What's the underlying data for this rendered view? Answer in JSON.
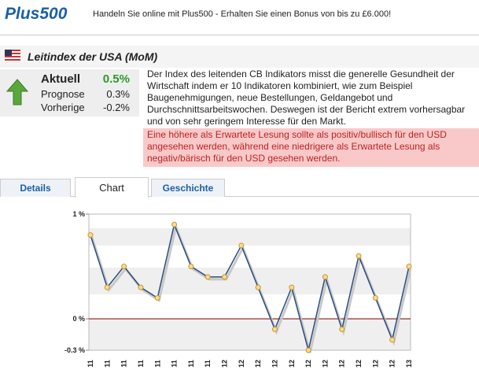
{
  "header": {
    "logo": "Plus500",
    "tagline": "Handeln Sie online mit Plus500 - Erhalten Sie einen Bonus von bis zu £6.000!"
  },
  "title": "Leitindex der USA (MoM)",
  "stats": {
    "current_label": "Aktuell",
    "current_value": "0.5%",
    "forecast_label": "Prognose",
    "forecast_value": "0.3%",
    "previous_label": "Vorherige",
    "previous_value": "-0.2%"
  },
  "description": "Der Index des leitenden CB Indikators misst die generelle Gesundheit der Wirtschaft indem er 10 Indikatoren kombiniert, wie zum Beispiel Baugenehmigungen, neue Bestellungen, Geldangebot und Durchschnittsarbeitswochen. Deswegen ist der Bericht extrem vorhersagbar und von sehr geringem Interesse für den Markt.",
  "note": "Eine höhere als Erwartete Lesung sollte als positiv/bullisch für den USD angesehen werden, während eine niedrigere als Erwartete Lesung als negativ/bärisch für den USD gesehen werden.",
  "tabs": [
    "Details",
    "Chart",
    "Geschichte"
  ],
  "chart_data": {
    "type": "line",
    "categories": [
      "11",
      "11",
      "11",
      "11",
      "11",
      "11",
      "11",
      "11",
      "12",
      "12",
      "12",
      "12",
      "12",
      "12",
      "12",
      "12",
      "12",
      "12",
      "12",
      "13"
    ],
    "series": [
      {
        "name": "Leitindex",
        "color": "#2b4c7e",
        "values": [
          0.8,
          0.3,
          0.5,
          0.3,
          0.2,
          0.9,
          0.5,
          0.4,
          0.4,
          0.7,
          0.3,
          -0.1,
          0.3,
          -0.3,
          0.4,
          -0.1,
          0.6,
          0.2,
          -0.2,
          0.5
        ]
      }
    ],
    "ylim": [
      -0.3,
      1
    ],
    "yticks": [
      {
        "value": -0.3,
        "label": "-0.3 %"
      },
      {
        "value": 0,
        "label": "0 %"
      },
      {
        "value": 1,
        "label": "1 %"
      }
    ]
  }
}
